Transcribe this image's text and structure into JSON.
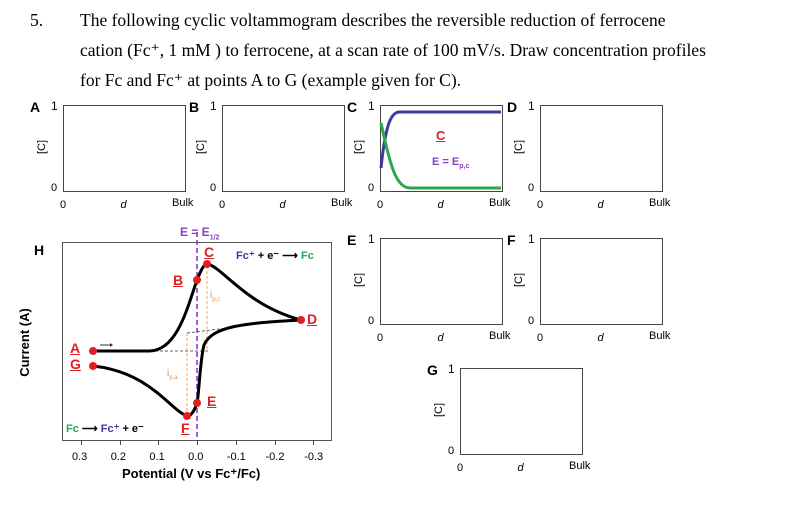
{
  "question": {
    "number": "5.",
    "line1": "The following cyclic voltammogram describes the reversible reduction of ferrocene",
    "line2": "cation (Fc⁺, 1 mM ) to ferrocene, at a scan rate of 100 mV/s. Draw concentration profiles",
    "line3": "for Fc and Fc⁺ at points A to G (example given for C)."
  },
  "profiles": [
    {
      "label": "A",
      "y_top": "1",
      "y_bottom": "0",
      "ylabel": "[C]",
      "x_left": "0",
      "x_mid": "d",
      "x_right": "Bulk"
    },
    {
      "label": "B",
      "y_top": "1",
      "y_bottom": "0",
      "ylabel": "[C]",
      "x_left": "0",
      "x_mid": "d",
      "x_right": "Bulk"
    },
    {
      "label": "C",
      "y_top": "1",
      "y_bottom": "0",
      "ylabel": "[C]",
      "x_left": "0",
      "x_mid": "d",
      "x_right": "Bulk",
      "inner_label": "C",
      "inner_eq": "E = E",
      "inner_sub": "p,c"
    },
    {
      "label": "D",
      "y_top": "1",
      "y_bottom": "0",
      "ylabel": "[C]",
      "x_left": "0",
      "x_mid": "d",
      "x_right": "Bulk"
    },
    {
      "label": "E",
      "y_top": "1",
      "y_bottom": "0",
      "ylabel": "[C]",
      "x_left": "0",
      "x_mid": "d",
      "x_right": "Bulk"
    },
    {
      "label": "F",
      "y_top": "1",
      "y_bottom": "0",
      "ylabel": "[C]",
      "x_left": "0",
      "x_mid": "d",
      "x_right": "Bulk"
    },
    {
      "label": "G",
      "y_top": "1",
      "y_bottom": "0",
      "ylabel": "[C]",
      "x_left": "0",
      "x_mid": "d",
      "x_right": "Bulk"
    }
  ],
  "cv": {
    "panel_label": "H",
    "ylabel": "Current (A)",
    "xlabel": "Potential (V vs Fc⁺/Fc)",
    "xticks": [
      "0.3",
      "0.2",
      "0.1",
      "0.0",
      "-0.1",
      "-0.2",
      "-0.3"
    ],
    "e_half": "E = E",
    "e_half_sub": "1/2",
    "reduction": {
      "a": "Fc⁺",
      "b": " + e⁻ ⟶ ",
      "c": "Fc"
    },
    "oxidation": {
      "a": "Fc",
      "b": " ⟶ ",
      "c": "Fc⁺",
      "d": " + e⁻"
    },
    "ipc": "i",
    "ipc_sub": "p,c",
    "ipa": "i",
    "ipa_sub": "p,a",
    "points": [
      "A",
      "B",
      "C",
      "D",
      "E",
      "F",
      "G"
    ],
    "colors": {
      "point": "#e02020",
      "fc_plus": "#3a3aa0",
      "fc": "#2aa84a",
      "e_half": "#8a3ec0",
      "peak": "#f08a3a"
    }
  }
}
